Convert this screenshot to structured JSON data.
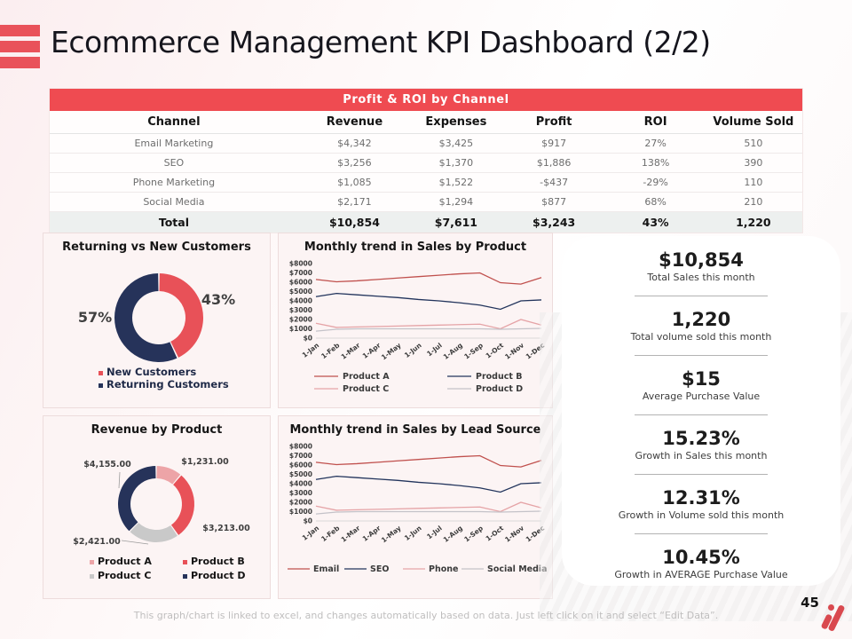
{
  "slide": {
    "title": "Ecommerce Management KPI Dashboard (2/2)",
    "page_number": "45",
    "footer_note": "This graph/chart is linked to excel, and changes automatically based on data. Just left click on it and select “Edit Data”.",
    "accent_red": "#ef4b51",
    "navy": "#26335a"
  },
  "table": {
    "title": "Profit & ROI by Channel",
    "columns": [
      "Channel",
      "Revenue",
      "Expenses",
      "Profit",
      "ROI",
      "Volume Sold"
    ],
    "rows": [
      [
        "Email Marketing",
        "$4,342",
        "$3,425",
        "$917",
        "27%",
        "510"
      ],
      [
        "SEO",
        "$3,256",
        "$1,370",
        "$1,886",
        "138%",
        "390"
      ],
      [
        "Phone Marketing",
        "$1,085",
        "$1,522",
        "-$437",
        "-29%",
        "110"
      ],
      [
        "Social Media",
        "$2,171",
        "$1,294",
        "$877",
        "68%",
        "210"
      ]
    ],
    "total_row": [
      "Total",
      "$10,854",
      "$7,611",
      "$3,243",
      "43%",
      "1,220"
    ]
  },
  "chart_data": [
    {
      "type": "pie",
      "subtype": "donut",
      "title": "Returning vs New Customers",
      "labels": [
        "New Customers",
        "Returning Customers"
      ],
      "values": [
        43,
        57
      ],
      "value_labels": [
        "43%",
        "57%"
      ],
      "colors": [
        "#e85158",
        "#26335a"
      ],
      "legend_position": "bottom"
    },
    {
      "type": "line",
      "title": "Monthly trend in Sales by Product",
      "x": [
        "1-Jan",
        "1-Feb",
        "1-Mar",
        "1-Apr",
        "1-May",
        "1-Jun",
        "1-Jul",
        "1-Aug",
        "1-Sep",
        "1-Oct",
        "1-Nov",
        "1-Dec"
      ],
      "series": [
        {
          "name": "Product A",
          "color": "#c0504d",
          "values": [
            6300,
            6050,
            6150,
            6300,
            6450,
            6600,
            6750,
            6900,
            7000,
            5950,
            5800,
            6500
          ]
        },
        {
          "name": "Product B",
          "color": "#22345c",
          "values": [
            4450,
            4800,
            4650,
            4500,
            4350,
            4150,
            4000,
            3800,
            3550,
            3100,
            4000,
            4100
          ]
        },
        {
          "name": "Product C",
          "color": "#e5a3a6",
          "values": [
            1600,
            1150,
            1200,
            1250,
            1300,
            1350,
            1400,
            1450,
            1500,
            1000,
            2000,
            1400
          ]
        },
        {
          "name": "Product D",
          "color": "#c4c2c8",
          "values": [
            750,
            950,
            1000,
            1000,
            1000,
            1000,
            1000,
            1000,
            1000,
            950,
            1000,
            1050
          ]
        }
      ],
      "ylim": [
        0,
        8000
      ],
      "yticks": [
        "$0",
        "$1000",
        "$2000",
        "$3000",
        "$4000",
        "$5000",
        "$6000",
        "$7000",
        "$8000"
      ],
      "xlabel": "",
      "ylabel": "",
      "grid": false,
      "legend_position": "bottom"
    },
    {
      "type": "pie",
      "subtype": "donut",
      "title": "Revenue by Product",
      "labels": [
        "Product A",
        "Product B",
        "Product C",
        "Product D"
      ],
      "values": [
        1231,
        3213,
        2421,
        4155
      ],
      "value_labels": [
        "$1,231.00",
        "$3,213.00",
        "$2,421.00",
        "$4,155.00"
      ],
      "colors": [
        "#eda4a7",
        "#e85158",
        "#c9c9c9",
        "#26335a"
      ],
      "legend_position": "bottom"
    },
    {
      "type": "line",
      "title": "Monthly trend in Sales by Lead Source",
      "x": [
        "1-Jan",
        "1-Feb",
        "1-Mar",
        "1-Apr",
        "1-May",
        "1-Jun",
        "1-Jul",
        "1-Aug",
        "1-Sep",
        "1-Oct",
        "1-Nov",
        "1-Dec"
      ],
      "series": [
        {
          "name": "Email",
          "color": "#c0504d",
          "values": [
            6300,
            6050,
            6150,
            6300,
            6450,
            6600,
            6750,
            6900,
            7000,
            5950,
            5800,
            6500
          ]
        },
        {
          "name": "SEO",
          "color": "#22345c",
          "values": [
            4450,
            4800,
            4650,
            4500,
            4350,
            4150,
            4000,
            3800,
            3550,
            3100,
            4000,
            4100
          ]
        },
        {
          "name": "Phone",
          "color": "#e5a3a6",
          "values": [
            1600,
            1150,
            1200,
            1250,
            1300,
            1350,
            1400,
            1450,
            1500,
            1000,
            2000,
            1400
          ]
        },
        {
          "name": "Social Media",
          "color": "#c4c2c8",
          "values": [
            750,
            950,
            1000,
            1000,
            1000,
            1000,
            1000,
            1000,
            1000,
            950,
            1000,
            1050
          ]
        }
      ],
      "ylim": [
        0,
        8000
      ],
      "yticks": [
        "$0",
        "$1000",
        "$2000",
        "$3000",
        "$4000",
        "$5000",
        "$6000",
        "$7000",
        "$8000"
      ],
      "xlabel": "",
      "ylabel": "",
      "grid": false,
      "legend_position": "bottom"
    }
  ],
  "kpis": [
    {
      "value": "$10,854",
      "label": "Total Sales this month"
    },
    {
      "value": "1,220",
      "label": "Total volume sold this month"
    },
    {
      "value": "$15",
      "label": "Average Purchase Value"
    },
    {
      "value": "15.23%",
      "label": "Growth in Sales this month"
    },
    {
      "value": "12.31%",
      "label": "Growth in Volume sold this month"
    },
    {
      "value": "10.45%",
      "label": "Growth in AVERAGE Purchase Value"
    }
  ]
}
